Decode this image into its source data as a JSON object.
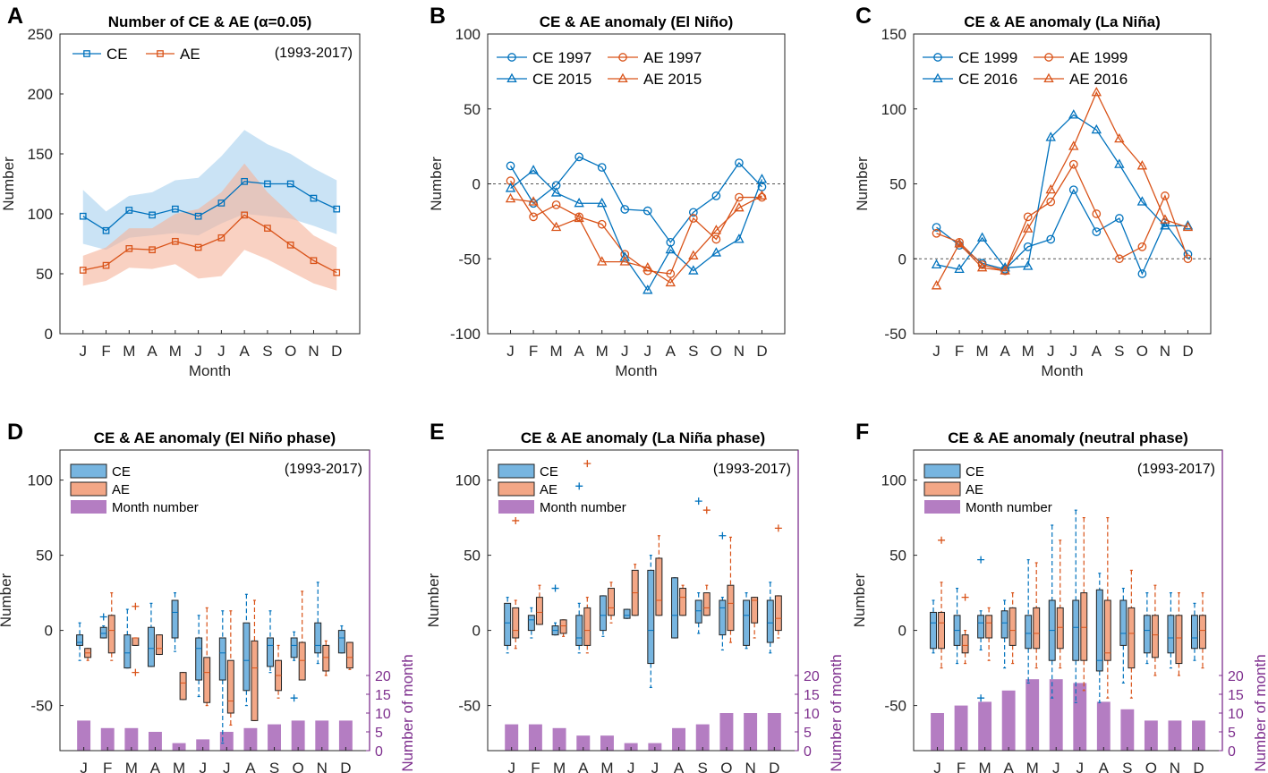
{
  "colors": {
    "ce": "#0072bd",
    "ae": "#d95319",
    "ce_fill": "#a6d0ee",
    "ae_fill": "#f5b39a",
    "ce_box": "#77b5e0",
    "ae_box": "#f3a786",
    "month_bar": "#b47dc2",
    "purple_axis": "#7e2f8e"
  },
  "chart_data": [
    {
      "panel": "A",
      "type": "line",
      "title": "Number of CE & AE (α=0.05)",
      "annotation": "(1993-2017)",
      "xlabel": "Month",
      "ylabel": "Number",
      "categories": [
        "J",
        "F",
        "M",
        "A",
        "M",
        "J",
        "J",
        "A",
        "S",
        "O",
        "N",
        "D"
      ],
      "ylim": [
        0,
        250
      ],
      "yticks": [
        0,
        50,
        100,
        150,
        200,
        250
      ],
      "series": [
        {
          "name": "CE",
          "marker": "square",
          "color_key": "ce",
          "values": [
            98,
            86,
            103,
            99,
            104,
            98,
            109,
            127,
            125,
            125,
            113,
            104
          ],
          "band_low": [
            75,
            70,
            80,
            82,
            84,
            82,
            92,
            100,
            98,
            96,
            90,
            83
          ],
          "band_high": [
            120,
            102,
            115,
            118,
            128,
            130,
            148,
            170,
            158,
            150,
            138,
            128
          ]
        },
        {
          "name": "AE",
          "marker": "square",
          "color_key": "ae",
          "values": [
            53,
            57,
            71,
            70,
            77,
            72,
            80,
            99,
            88,
            74,
            61,
            51
          ],
          "band_low": [
            40,
            44,
            55,
            54,
            58,
            46,
            48,
            70,
            62,
            52,
            42,
            36
          ],
          "band_high": [
            65,
            72,
            88,
            88,
            100,
            104,
            118,
            142,
            118,
            100,
            82,
            72
          ]
        }
      ]
    },
    {
      "panel": "B",
      "type": "line",
      "title": "CE & AE anomaly (El Niño)",
      "xlabel": "Month",
      "ylabel": "Number",
      "categories": [
        "J",
        "F",
        "M",
        "A",
        "M",
        "J",
        "J",
        "A",
        "S",
        "O",
        "N",
        "D"
      ],
      "ylim": [
        -100,
        100
      ],
      "yticks": [
        -100,
        -50,
        0,
        50,
        100
      ],
      "series": [
        {
          "name": "CE 1997",
          "marker": "circle",
          "color_key": "ce",
          "values": [
            12,
            -13,
            -1,
            18,
            11,
            -17,
            -18,
            -39,
            -19,
            -8,
            14,
            -2
          ]
        },
        {
          "name": "AE 1997",
          "marker": "circle",
          "color_key": "ae",
          "values": [
            2,
            -22,
            -14,
            -22,
            -27,
            -47,
            -58,
            -60,
            -23,
            -37,
            -9,
            -9
          ]
        },
        {
          "name": "CE 2015",
          "marker": "triangle",
          "color_key": "ce",
          "values": [
            -3,
            9,
            -6,
            -13,
            -13,
            -49,
            -71,
            -44,
            -58,
            -46,
            -37,
            3
          ]
        },
        {
          "name": "AE 2015",
          "marker": "triangle",
          "color_key": "ae",
          "values": [
            -10,
            -12,
            -29,
            -23,
            -52,
            -52,
            -56,
            -66,
            -48,
            -31,
            -16,
            -8
          ]
        }
      ]
    },
    {
      "panel": "C",
      "type": "line",
      "title": "CE & AE anomaly (La Niña)",
      "xlabel": "Month",
      "ylabel": "Number",
      "categories": [
        "J",
        "F",
        "M",
        "A",
        "M",
        "J",
        "J",
        "A",
        "S",
        "O",
        "N",
        "D"
      ],
      "ylim": [
        -50,
        150
      ],
      "yticks": [
        -50,
        0,
        50,
        100,
        150
      ],
      "series": [
        {
          "name": "CE 1999",
          "marker": "circle",
          "color_key": "ce",
          "values": [
            21,
            9,
            -3,
            -7,
            8,
            13,
            46,
            18,
            27,
            -10,
            24,
            3
          ]
        },
        {
          "name": "AE 1999",
          "marker": "circle",
          "color_key": "ae",
          "values": [
            17,
            11,
            -4,
            -8,
            28,
            38,
            63,
            30,
            0,
            8,
            42,
            0
          ]
        },
        {
          "name": "CE 2016",
          "marker": "triangle",
          "color_key": "ce",
          "values": [
            -4,
            -7,
            14,
            -6,
            -5,
            81,
            96,
            86,
            63,
            38,
            22,
            22
          ]
        },
        {
          "name": "AE 2016",
          "marker": "triangle",
          "color_key": "ae",
          "values": [
            -18,
            10,
            -6,
            -8,
            20,
            46,
            75,
            111,
            80,
            62,
            26,
            21
          ]
        }
      ]
    },
    {
      "panel": "D",
      "type": "box",
      "title": "CE & AE anomaly (El Niño phase)",
      "annotation": "(1993-2017)",
      "xlabel": "",
      "ylabel": "Number",
      "right_ylabel": "Number of month",
      "categories": [
        "J",
        "F",
        "M",
        "A",
        "M",
        "J",
        "J",
        "A",
        "S",
        "O",
        "N",
        "D"
      ],
      "ylim": [
        -80,
        120
      ],
      "yticks": [
        -50,
        0,
        50,
        100
      ],
      "right_ylim": [
        0,
        80
      ],
      "right_yticks": [
        0,
        5,
        10,
        15,
        20
      ],
      "legend": [
        "CE",
        "AE",
        "Month number"
      ],
      "month_counts": [
        8,
        6,
        6,
        5,
        2,
        3,
        5,
        6,
        7,
        8,
        8,
        8
      ],
      "boxes": {
        "CE": [
          [
            -20,
            -10,
            -8,
            -3,
            5
          ],
          [
            -5,
            -5,
            -2,
            2,
            3
          ],
          [
            -25,
            -25,
            -15,
            -3,
            14
          ],
          [
            -24,
            -24,
            -12,
            2,
            18
          ],
          [
            -14,
            -5,
            12,
            20,
            25
          ],
          [
            -44,
            -33,
            -12,
            -5,
            10
          ],
          [
            -75,
            -33,
            -15,
            -5,
            13
          ],
          [
            -50,
            -40,
            -20,
            5,
            24
          ],
          [
            -28,
            -24,
            -10,
            -5,
            13
          ],
          [
            -20,
            -18,
            -10,
            -5,
            -1
          ],
          [
            -22,
            -15,
            -10,
            5,
            32
          ],
          [
            -15,
            -15,
            -5,
            0,
            3
          ]
        ],
        "AE": [
          [
            -20,
            -18,
            -15,
            -12,
            -12
          ],
          [
            -20,
            -15,
            0,
            10,
            25
          ],
          [
            -10,
            -10,
            -5,
            -5,
            -5
          ],
          [
            -16,
            -16,
            -12,
            -3,
            -3
          ],
          [
            -46,
            -46,
            -35,
            -28,
            -28
          ],
          [
            -50,
            -48,
            -28,
            -18,
            15
          ],
          [
            -63,
            -55,
            -47,
            -20,
            13
          ],
          [
            -60,
            -60,
            -25,
            -7,
            20
          ],
          [
            -45,
            -40,
            -30,
            -20,
            -10
          ],
          [
            -30,
            -33,
            -20,
            -8,
            26
          ],
          [
            -30,
            -27,
            -18,
            -10,
            -7
          ],
          [
            -26,
            -25,
            -18,
            -8,
            -8
          ]
        ]
      },
      "outliers": [
        {
          "series": "CE",
          "month": "F",
          "value": 9
        },
        {
          "series": "AE",
          "month": "M",
          "value": 16
        },
        {
          "series": "AE",
          "month": "M",
          "value": -28
        },
        {
          "series": "CE",
          "month": "O",
          "value": -45
        }
      ]
    },
    {
      "panel": "E",
      "type": "box",
      "title": "CE & AE anomaly (La Niña phase)",
      "annotation": "(1993-2017)",
      "xlabel": "",
      "ylabel": "Number",
      "right_ylabel": "Number of month",
      "categories": [
        "J",
        "F",
        "M",
        "A",
        "M",
        "J",
        "J",
        "A",
        "S",
        "O",
        "N",
        "D"
      ],
      "ylim": [
        -80,
        120
      ],
      "yticks": [
        -50,
        0,
        50,
        100
      ],
      "right_ylim": [
        0,
        80
      ],
      "right_yticks": [
        0,
        5,
        10,
        15,
        20
      ],
      "legend": [
        "CE",
        "AE",
        "Month number"
      ],
      "month_counts": [
        7,
        7,
        6,
        4,
        4,
        2,
        2,
        6,
        7,
        10,
        10,
        10
      ],
      "boxes": {
        "CE": [
          [
            -15,
            -10,
            5,
            18,
            22
          ],
          [
            -5,
            0,
            7,
            10,
            15
          ],
          [
            -3,
            -3,
            0,
            3,
            5
          ],
          [
            -15,
            -10,
            -5,
            10,
            18
          ],
          [
            -4,
            0,
            10,
            23,
            23
          ],
          [
            8,
            8,
            10,
            14,
            14
          ],
          [
            -38,
            -22,
            0,
            40,
            50
          ],
          [
            -5,
            -5,
            10,
            35,
            35
          ],
          [
            -2,
            5,
            13,
            20,
            25
          ],
          [
            -13,
            -3,
            15,
            20,
            22
          ],
          [
            -12,
            -10,
            10,
            20,
            25
          ],
          [
            -15,
            -8,
            5,
            20,
            32
          ]
        ],
        "AE": [
          [
            -12,
            -5,
            0,
            15,
            20
          ],
          [
            4,
            4,
            12,
            22,
            30
          ],
          [
            -4,
            -2,
            3,
            7,
            7
          ],
          [
            -15,
            -10,
            0,
            15,
            22
          ],
          [
            5,
            10,
            15,
            28,
            32
          ],
          [
            10,
            10,
            25,
            40,
            44
          ],
          [
            10,
            10,
            20,
            48,
            63
          ],
          [
            10,
            10,
            22,
            28,
            30
          ],
          [
            10,
            10,
            15,
            25,
            30
          ],
          [
            -8,
            0,
            18,
            30,
            62
          ],
          [
            -5,
            5,
            20,
            22,
            22
          ],
          [
            -5,
            0,
            8,
            23,
            23
          ]
        ]
      },
      "outliers": [
        {
          "series": "AE",
          "month": "J",
          "value": 73
        },
        {
          "series": "CE",
          "month": "M",
          "value": 28
        },
        {
          "series": "CE",
          "month": "A",
          "value": 96
        },
        {
          "series": "CE",
          "month": "S",
          "value": 86
        },
        {
          "series": "AE",
          "month": "S",
          "value": 80
        },
        {
          "series": "AE",
          "month": "A",
          "value": 111
        },
        {
          "series": "CE",
          "month": "O",
          "value": 63
        },
        {
          "series": "AE",
          "month": "D",
          "value": 68
        }
      ]
    },
    {
      "panel": "F",
      "type": "box",
      "title": "CE & AE anomaly (neutral phase)",
      "annotation": "(1993-2017)",
      "xlabel": "",
      "ylabel": "Number",
      "right_ylabel": "Number of month",
      "categories": [
        "J",
        "F",
        "M",
        "A",
        "M",
        "J",
        "J",
        "A",
        "S",
        "O",
        "N",
        "D"
      ],
      "ylim": [
        -80,
        120
      ],
      "yticks": [
        -50,
        0,
        50,
        100
      ],
      "right_ylim": [
        0,
        80
      ],
      "right_yticks": [
        0,
        5,
        10,
        15,
        20
      ],
      "legend": [
        "CE",
        "AE",
        "Month number"
      ],
      "month_counts": [
        10,
        12,
        13,
        16,
        19,
        19,
        18,
        13,
        11,
        8,
        8,
        8
      ],
      "boxes": {
        "CE": [
          [
            -15,
            -12,
            5,
            12,
            20
          ],
          [
            -22,
            -10,
            0,
            10,
            28
          ],
          [
            -13,
            -5,
            5,
            10,
            13
          ],
          [
            -25,
            -5,
            5,
            13,
            20
          ],
          [
            -35,
            -12,
            -2,
            10,
            47
          ],
          [
            -45,
            -20,
            0,
            20,
            70
          ],
          [
            -48,
            -20,
            2,
            20,
            80
          ],
          [
            -48,
            -27,
            -20,
            27,
            38
          ],
          [
            -35,
            -10,
            -2,
            20,
            28
          ],
          [
            -22,
            -15,
            0,
            10,
            25
          ],
          [
            -25,
            -15,
            -5,
            10,
            25
          ],
          [
            -20,
            -12,
            -5,
            10,
            18
          ]
        ],
        "AE": [
          [
            -25,
            -12,
            5,
            12,
            32
          ],
          [
            -22,
            -15,
            -10,
            -3,
            0
          ],
          [
            -20,
            -5,
            5,
            10,
            15
          ],
          [
            -22,
            -10,
            0,
            15,
            25
          ],
          [
            -25,
            -12,
            -2,
            15,
            45
          ],
          [
            -25,
            -12,
            2,
            15,
            60
          ],
          [
            -40,
            -20,
            2,
            25,
            75
          ],
          [
            -45,
            -20,
            -15,
            20,
            75
          ],
          [
            -45,
            -25,
            -2,
            15,
            40
          ],
          [
            -30,
            -18,
            -3,
            10,
            30
          ],
          [
            -30,
            -22,
            -5,
            10,
            25
          ],
          [
            -25,
            -12,
            0,
            10,
            25
          ]
        ]
      },
      "outliers": [
        {
          "series": "AE",
          "month": "F",
          "value": 22
        },
        {
          "series": "CE",
          "month": "M",
          "value": 47
        },
        {
          "series": "CE",
          "month": "M",
          "value": -45
        },
        {
          "series": "AE",
          "month": "J",
          "value": 60
        }
      ]
    }
  ]
}
